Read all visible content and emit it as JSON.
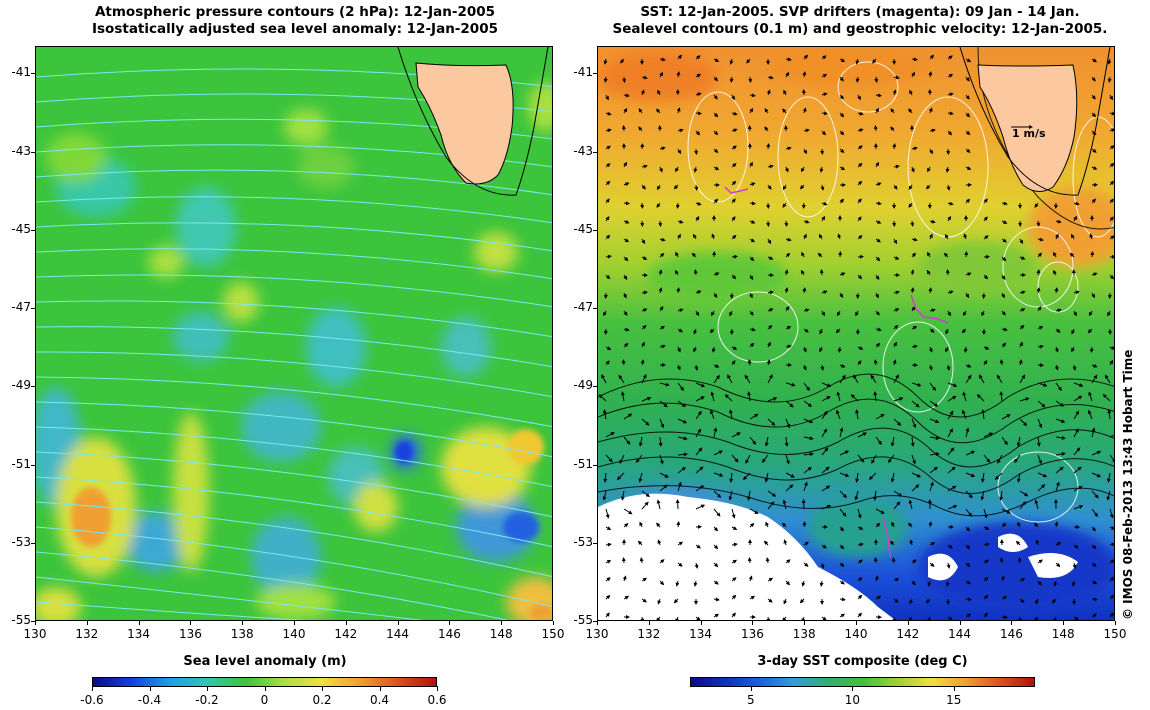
{
  "left_map": {
    "title_line1": "Atmospheric pressure contours (2 hPa): 12-Jan-2005",
    "title_line2": "Isostatically adjusted sea level anomaly: 12-Jan-2005",
    "lon_ticks": [
      "130",
      "132",
      "134",
      "136",
      "138",
      "140",
      "142",
      "144",
      "146",
      "148",
      "150"
    ],
    "lat_ticks": [
      "-41",
      "-43",
      "-45",
      "-47",
      "-49",
      "-51",
      "-53",
      "-55"
    ],
    "colorbar": {
      "title": "Sea level anomaly (m)",
      "ticks": [
        "-0.6",
        "-0.4",
        "-0.2",
        "0",
        "0.2",
        "0.4",
        "0.6"
      ],
      "min": -0.6,
      "max": 0.6
    },
    "contour_color": "#7fe6ef",
    "background_color": "#3cc43c"
  },
  "right_map": {
    "title_line1": "SST: 12-Jan-2005. SVP drifters (magenta): 09 Jan - 14 Jan.",
    "title_line2": "Sealevel contours (0.1 m) and geostrophic velocity: 12-Jan-2005.",
    "lon_ticks": [
      "130",
      "132",
      "134",
      "136",
      "138",
      "140",
      "142",
      "144",
      "146",
      "148",
      "150"
    ],
    "lat_ticks": [
      "-41",
      "-43",
      "-45",
      "-47",
      "-49",
      "-51",
      "-53",
      "-55"
    ],
    "colorbar": {
      "title": "3-day SST composite (deg C)",
      "ticks": [
        "5",
        "10",
        "15"
      ],
      "min": 2,
      "max": 19
    },
    "velocity_scale_label": "1 m/s",
    "drifter_color": "#d23cd2",
    "land_color": "#fcc8a0"
  },
  "credit": "© IMOS 08-Feb-2013 13:43 Hobart Time",
  "extent": {
    "lon_min": 130,
    "lon_max": 150,
    "lat_min": -55,
    "lat_max": -40.3
  }
}
